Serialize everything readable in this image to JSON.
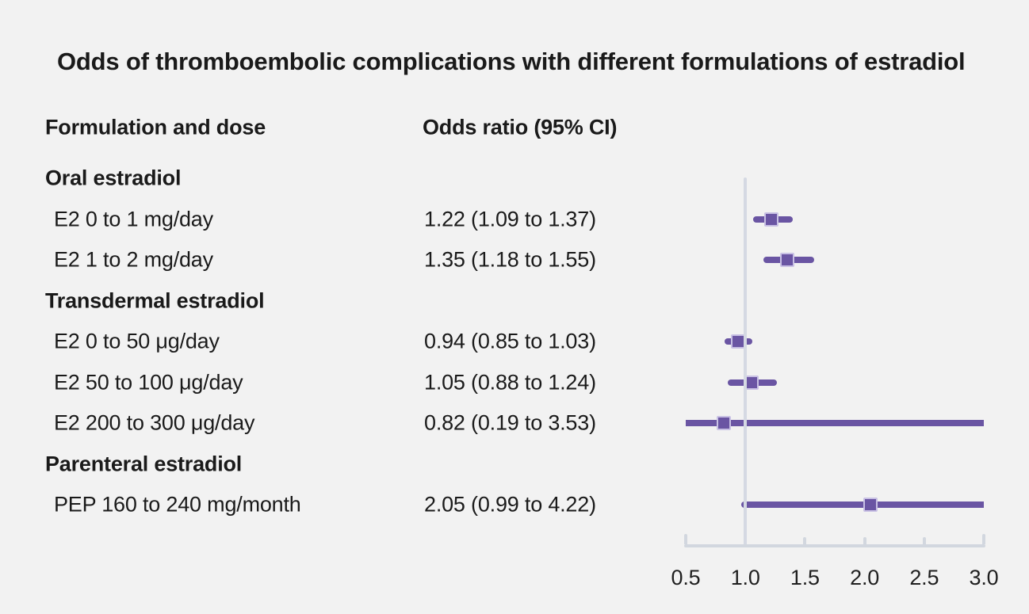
{
  "title": "Odds of thromboembolic complications with different formulations of estradiol",
  "columns": {
    "formulation": "Formulation and dose",
    "odds_ratio": "Odds ratio (95% CI)"
  },
  "colors": {
    "background": "#f2f2f2",
    "text": "#1a1a1a",
    "marker": "#6a55a3",
    "marker_border": "#c8c0e4",
    "axis_line": "#d2d7df",
    "reference_line": "#d5d9e3"
  },
  "chart_data": {
    "type": "forest",
    "title": "Odds of thromboembolic complications with different formulations of estradiol",
    "xlabel": "",
    "ylabel": "",
    "x_axis": {
      "min": 0.5,
      "max": 3.0,
      "reference": 1.0,
      "ticks": [
        0.5,
        1.0,
        1.5,
        2.0,
        2.5,
        3.0
      ],
      "tick_labels": [
        "0.5",
        "1.0",
        "1.5",
        "2.0",
        "2.5",
        "3.0"
      ]
    },
    "rows": [
      {
        "kind": "group",
        "label": "Oral estradiol"
      },
      {
        "kind": "item",
        "label": "E2 0 to 1 mg/day",
        "odds_text": "1.22 (1.09 to 1.37)",
        "or": 1.22,
        "ci_low": 1.09,
        "ci_high": 1.37
      },
      {
        "kind": "item",
        "label": "E2 1 to 2 mg/day",
        "odds_text": "1.35 (1.18 to 1.55)",
        "or": 1.35,
        "ci_low": 1.18,
        "ci_high": 1.55
      },
      {
        "kind": "group",
        "label": "Transdermal estradiol"
      },
      {
        "kind": "item",
        "label": "E2 0 to 50 μg/day",
        "odds_text": "0.94 (0.85 to 1.03)",
        "or": 0.94,
        "ci_low": 0.85,
        "ci_high": 1.03
      },
      {
        "kind": "item",
        "label": "E2 50 to 100 μg/day",
        "odds_text": "1.05 (0.88 to 1.24)",
        "or": 1.05,
        "ci_low": 0.88,
        "ci_high": 1.24
      },
      {
        "kind": "item",
        "label": "E2 200 to 300 μg/day",
        "odds_text": "0.82 (0.19 to 3.53)",
        "or": 0.82,
        "ci_low": 0.19,
        "ci_high": 3.53
      },
      {
        "kind": "group",
        "label": "Parenteral estradiol"
      },
      {
        "kind": "item",
        "label": "PEP 160 to 240 mg/month",
        "odds_text": "2.05 (0.99 to 4.22)",
        "or": 2.05,
        "ci_low": 0.99,
        "ci_high": 4.22
      }
    ]
  }
}
